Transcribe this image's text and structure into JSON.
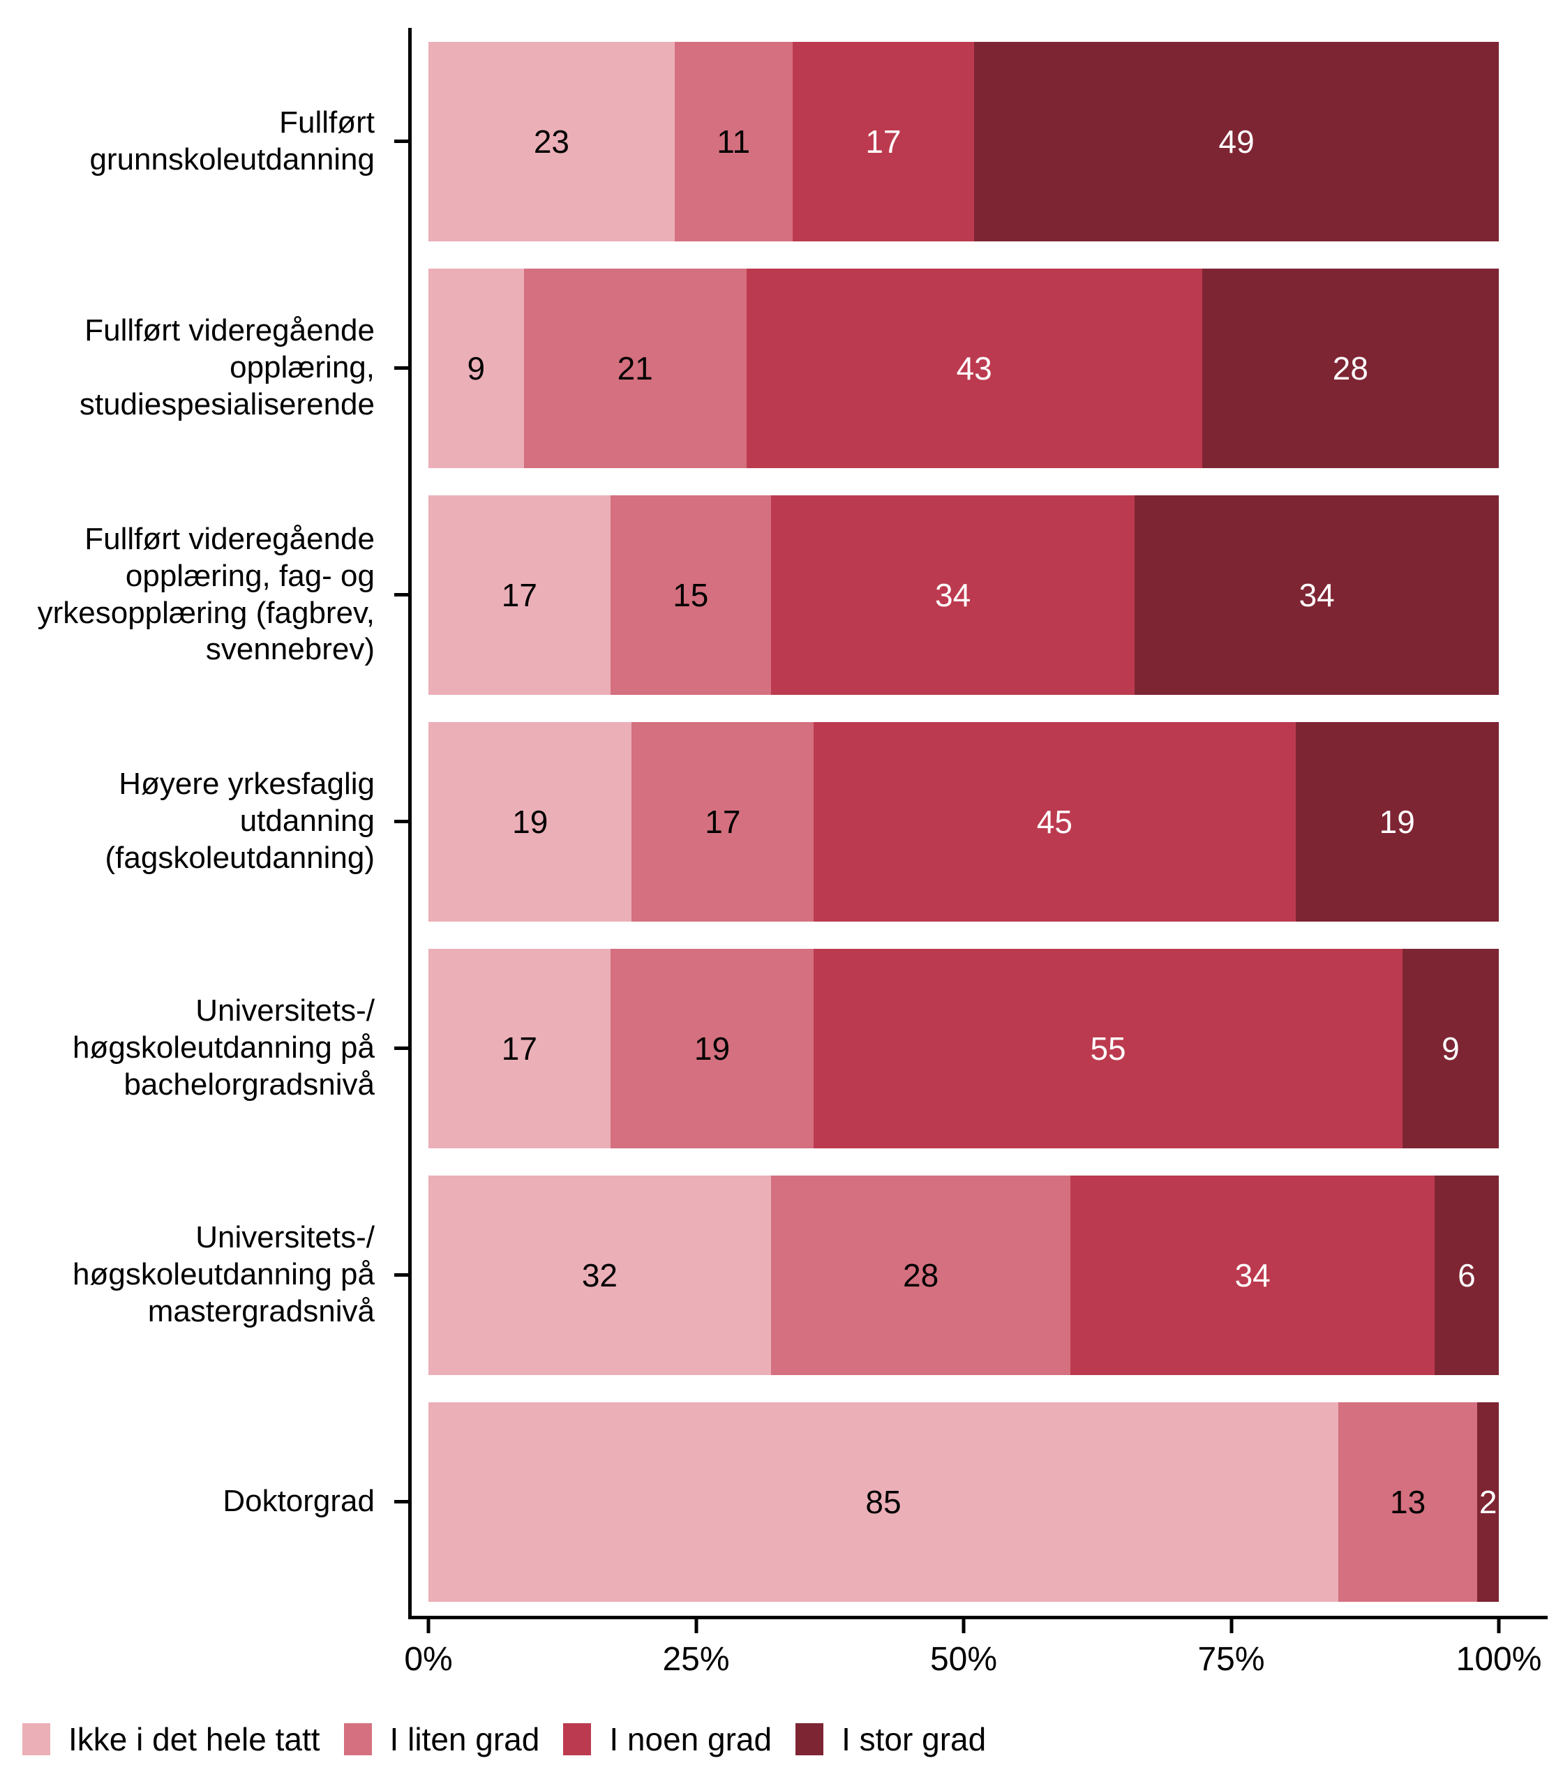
{
  "chart_data": {
    "type": "bar",
    "variant": "horizontal-stacked-percent",
    "title": "",
    "xlabel": "",
    "ylabel": "",
    "xlim": [
      0,
      100
    ],
    "grid": false,
    "legend_position": "bottom-left",
    "series": [
      "Ikke i det hele tatt",
      "I liten grad",
      "I noen grad",
      "I stor grad"
    ],
    "series_colors": [
      "#EBAFB8",
      "#D4707F",
      "#BC3A4F",
      "#7E2533"
    ],
    "value_label_colors": [
      "#000000",
      "#000000",
      "#FFFFFF",
      "#FFFFFF"
    ],
    "rows": [
      {
        "label": "Fullført\ngrunnskoleutdanning",
        "values": [
          23,
          11,
          17,
          49
        ]
      },
      {
        "label": "Fullført videregående\nopplæring,\nstudiespesialiserende",
        "values": [
          9,
          21,
          43,
          28
        ]
      },
      {
        "label": "Fullført videregående\nopplæring, fag- og\nyrkesopplæring (fagbrev,\nsvennebrev)",
        "values": [
          17,
          15,
          34,
          34
        ]
      },
      {
        "label": "Høyere yrkesfaglig\nutdanning\n(fagskoleutdanning)",
        "values": [
          19,
          17,
          45,
          19
        ]
      },
      {
        "label": "Universitets-/\nhøgskoleutdanning på\nbachelorgradsnivå",
        "values": [
          17,
          19,
          55,
          9
        ]
      },
      {
        "label": "Universitets-/\nhøgskoleutdanning på\nmastergradsnivå",
        "values": [
          32,
          28,
          34,
          6
        ]
      },
      {
        "label": "Doktorgrad",
        "values": [
          85,
          13,
          0,
          2
        ]
      }
    ],
    "x_ticks": [
      {
        "label": "0%",
        "pos": 0
      },
      {
        "label": "25%",
        "pos": 25
      },
      {
        "label": "50%",
        "pos": 50
      },
      {
        "label": "75%",
        "pos": 75
      },
      {
        "label": "100%",
        "pos": 100
      }
    ]
  },
  "colors": {
    "background": "#FFFFFF",
    "axis": "#000000",
    "text": "#000000"
  }
}
